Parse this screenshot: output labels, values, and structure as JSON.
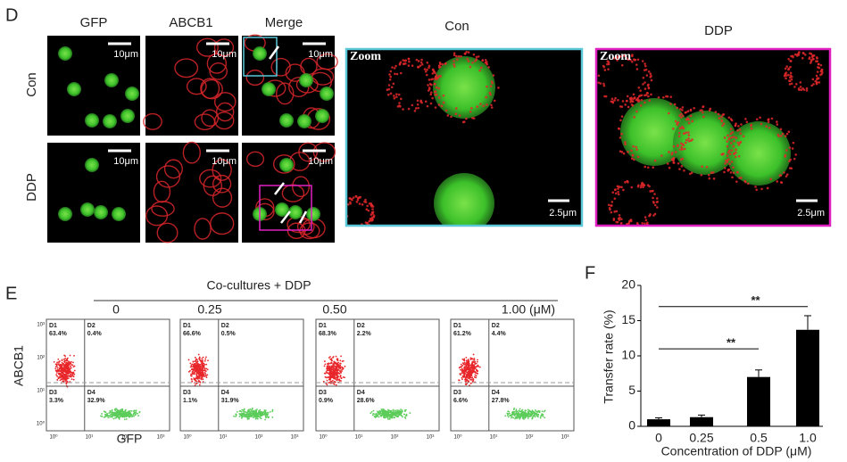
{
  "panel_d": {
    "label": "D",
    "columns": [
      "GFP",
      "ABCB1",
      "Merge"
    ],
    "rows": [
      "Con",
      "DDP"
    ],
    "scale_bar": "10μm",
    "zoom_titles": [
      "Con",
      "DDP"
    ],
    "zoom_label": "Zoom",
    "zoom_scale_bar": "2.5μm"
  },
  "panel_e": {
    "label": "E",
    "group_title": "Co-cultures + DDP",
    "concentrations": [
      "0",
      "0.25",
      "0.50",
      "1.00 (μM)"
    ],
    "y_label": "ABCB1",
    "x_label": "GFP",
    "axis_ticks": [
      "10⁰",
      "10¹",
      "10²",
      "10³"
    ],
    "quadrant_names": [
      "D1",
      "D2",
      "D3",
      "D4"
    ],
    "quadrants": [
      [
        "63.4%",
        "0.4%",
        "3.3%",
        "32.9%"
      ],
      [
        "66.6%",
        "0.5%",
        "1.1%",
        "31.9%"
      ],
      [
        "68.3%",
        "2.2%",
        "0.9%",
        "28.6%"
      ],
      [
        "61.2%",
        "4.4%",
        "6.6%",
        "27.8%"
      ]
    ]
  },
  "chart_data": {
    "type": "bar",
    "panel_label": "F",
    "y_label": "Transfer rate (%)",
    "x_label": "Concentration of DDP (μM)",
    "categories": [
      "0",
      "0.25",
      "0.5",
      "1.0"
    ],
    "values": [
      1.0,
      1.3,
      7.0,
      13.7
    ],
    "errors": [
      0.2,
      0.3,
      1.0,
      2.0
    ],
    "color": "#000000",
    "ylim": [
      0,
      20
    ],
    "yticks": [
      0,
      5,
      10,
      15,
      20
    ],
    "annotations": [
      {
        "text": "**",
        "categories": [
          "0",
          "1.0"
        ],
        "y": 17
      },
      {
        "text": "**",
        "categories": [
          "0",
          "0.5"
        ],
        "y": 11
      }
    ]
  }
}
